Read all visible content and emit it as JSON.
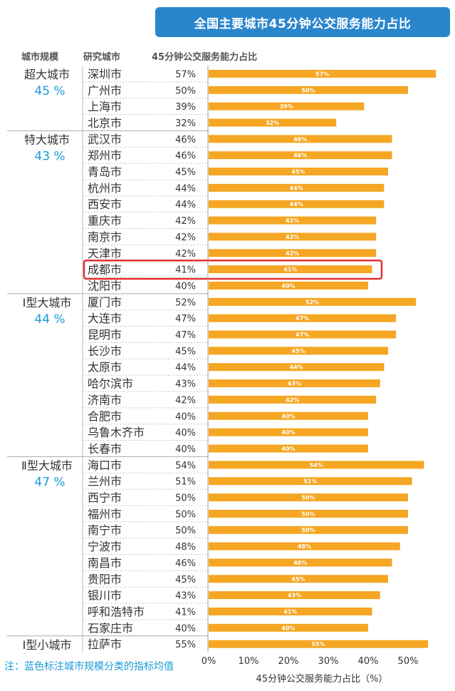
{
  "chart_data": {
    "type": "bar",
    "title": "全国主要城市45分钟公交服务能力占比",
    "headers": {
      "group": "城市规模",
      "city": "研究城市",
      "value": "45分钟公交服务能力占比"
    },
    "xlabel": "45分钟公交服务能力占比（%）",
    "xlim": [
      0,
      57
    ],
    "xticks": [
      "0%",
      "10%",
      "20%",
      "30%",
      "40%",
      "50%"
    ],
    "bar_color": "#f5a623",
    "accent_color": "#1a9ad6",
    "highlight_color": "#e53030",
    "highlight_city": "成都市",
    "groups": [
      {
        "name": "超大城市",
        "avg": "45 %",
        "rows": [
          {
            "city": "深圳市",
            "value": 57,
            "label": "57%"
          },
          {
            "city": "广州市",
            "value": 50,
            "label": "50%"
          },
          {
            "city": "上海市",
            "value": 39,
            "label": "39%"
          },
          {
            "city": "北京市",
            "value": 32,
            "label": "32%"
          }
        ]
      },
      {
        "name": "特大城市",
        "avg": "43 %",
        "rows": [
          {
            "city": "武汉市",
            "value": 46,
            "label": "46%"
          },
          {
            "city": "郑州市",
            "value": 46,
            "label": "46%"
          },
          {
            "city": "青岛市",
            "value": 45,
            "label": "45%"
          },
          {
            "city": "杭州市",
            "value": 44,
            "label": "44%"
          },
          {
            "city": "西安市",
            "value": 44,
            "label": "44%"
          },
          {
            "city": "重庆市",
            "value": 42,
            "label": "42%"
          },
          {
            "city": "南京市",
            "value": 42,
            "label": "42%"
          },
          {
            "city": "天津市",
            "value": 42,
            "label": "42%"
          },
          {
            "city": "成都市",
            "value": 41,
            "label": "41%"
          },
          {
            "city": "沈阳市",
            "value": 40,
            "label": "40%"
          }
        ]
      },
      {
        "name": "Ⅰ型大城市",
        "avg": "44 %",
        "rows": [
          {
            "city": "厦门市",
            "value": 52,
            "label": "52%"
          },
          {
            "city": "大连市",
            "value": 47,
            "label": "47%"
          },
          {
            "city": "昆明市",
            "value": 47,
            "label": "47%"
          },
          {
            "city": "长沙市",
            "value": 45,
            "label": "45%"
          },
          {
            "city": "太原市",
            "value": 44,
            "label": "44%"
          },
          {
            "city": "哈尔滨市",
            "value": 43,
            "label": "43%"
          },
          {
            "city": "济南市",
            "value": 42,
            "label": "42%"
          },
          {
            "city": "合肥市",
            "value": 40,
            "label": "40%"
          },
          {
            "city": "乌鲁木齐市",
            "value": 40,
            "label": "40%"
          },
          {
            "city": "长春市",
            "value": 40,
            "label": "40%"
          }
        ]
      },
      {
        "name": "Ⅱ型大城市",
        "avg": "47 %",
        "rows": [
          {
            "city": "海口市",
            "value": 54,
            "label": "54%"
          },
          {
            "city": "兰州市",
            "value": 51,
            "label": "51%"
          },
          {
            "city": "西宁市",
            "value": 50,
            "label": "50%"
          },
          {
            "city": "福州市",
            "value": 50,
            "label": "50%"
          },
          {
            "city": "南宁市",
            "value": 50,
            "label": "50%"
          },
          {
            "city": "宁波市",
            "value": 48,
            "label": "48%"
          },
          {
            "city": "南昌市",
            "value": 46,
            "label": "46%"
          },
          {
            "city": "贵阳市",
            "value": 45,
            "label": "45%"
          },
          {
            "city": "银川市",
            "value": 43,
            "label": "43%"
          },
          {
            "city": "呼和浩特市",
            "value": 41,
            "label": "41%"
          },
          {
            "city": "石家庄市",
            "value": 40,
            "label": "40%"
          }
        ]
      },
      {
        "name": "Ⅰ型小城市",
        "avg": "",
        "rows": [
          {
            "city": "拉萨市",
            "value": 55,
            "label": "55%"
          }
        ]
      }
    ],
    "note": "注：蓝色标注城市规模分类的指标均值"
  }
}
